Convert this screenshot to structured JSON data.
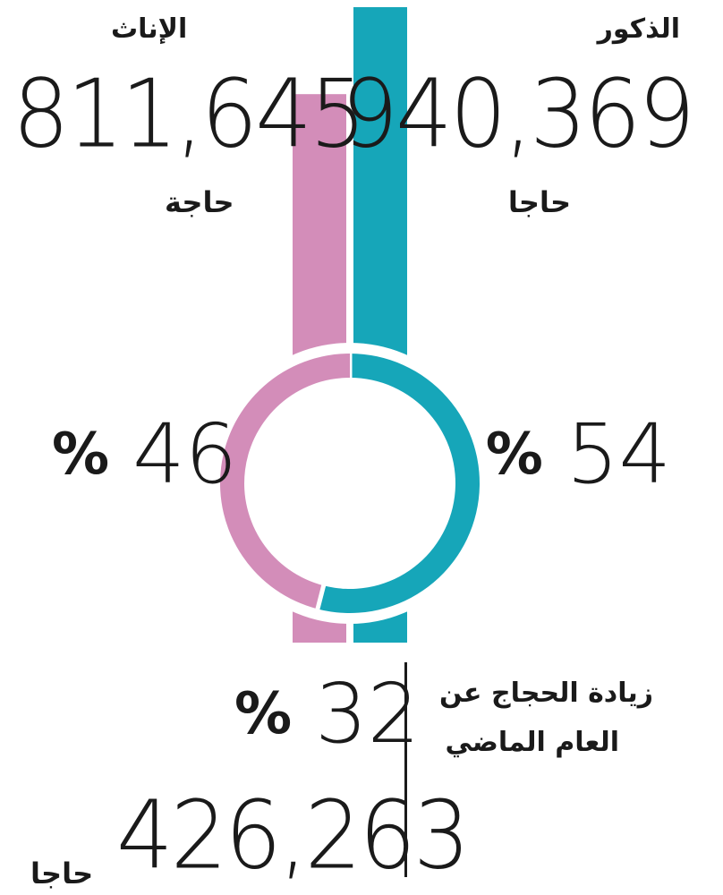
{
  "colors": {
    "male": "#16a6b9",
    "female": "#d38db9",
    "text": "#1a1a1a"
  },
  "male": {
    "label": "الذكور",
    "count": "940,369",
    "unit": "حاجا",
    "percent": "54",
    "percent_sign": "%"
  },
  "female": {
    "label": "الإناث",
    "count": "811,645",
    "unit": "حاجة",
    "percent": "46",
    "percent_sign": "%"
  },
  "increase": {
    "label_line1": "زيادة الحجاج عن",
    "label_line2": "العام الماضي",
    "percent": "32",
    "percent_sign": "%",
    "count": "426,263",
    "unit": "حاجا"
  },
  "chart_data": [
    {
      "type": "bar",
      "categories": [
        "الإناث",
        "الذكور"
      ],
      "values": [
        811645,
        940369
      ],
      "colors": [
        "#d38db9",
        "#16a6b9"
      ]
    },
    {
      "type": "pie",
      "categories": [
        "الذكور",
        "الإناث"
      ],
      "values": [
        54,
        46
      ],
      "colors": [
        "#16a6b9",
        "#d38db9"
      ]
    }
  ]
}
